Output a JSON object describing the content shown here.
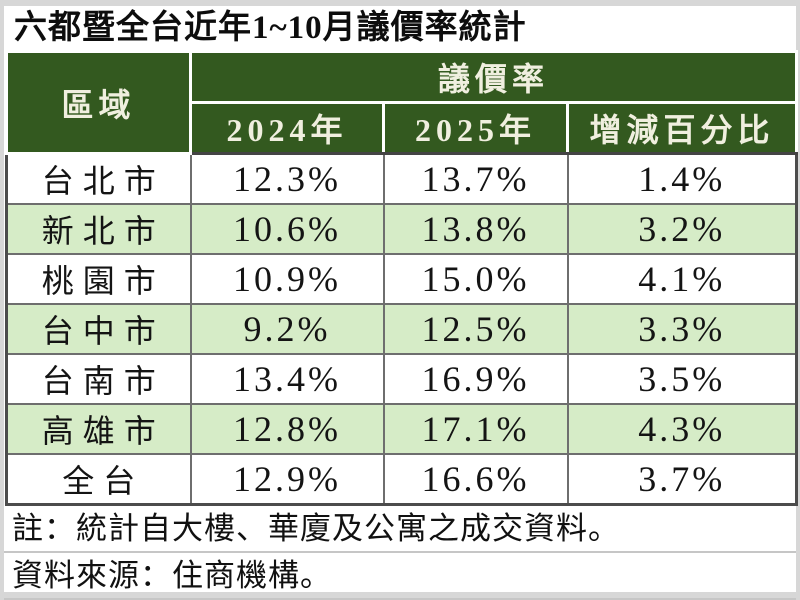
{
  "page": {
    "title": "六都暨全台近年1~10月議價率統計"
  },
  "table": {
    "region_header": "區域",
    "group_header": "議價率",
    "columns": [
      "2024年",
      "2025年",
      "增減百分比"
    ],
    "rows": [
      {
        "region": "台北市",
        "y2024": "12.3%",
        "y2025": "13.7%",
        "change": "1.4%"
      },
      {
        "region": "新北市",
        "y2024": "10.6%",
        "y2025": "13.8%",
        "change": "3.2%"
      },
      {
        "region": "桃園市",
        "y2024": "10.9%",
        "y2025": "15.0%",
        "change": "4.1%"
      },
      {
        "region": "台中市",
        "y2024": "9.2%",
        "y2025": "12.5%",
        "change": "3.3%"
      },
      {
        "region": "台南市",
        "y2024": "13.4%",
        "y2025": "16.9%",
        "change": "3.5%"
      },
      {
        "region": "高雄市",
        "y2024": "12.8%",
        "y2025": "17.1%",
        "change": "4.3%"
      },
      {
        "region": "全台",
        "y2024": "12.9%",
        "y2025": "16.6%",
        "change": "3.7%"
      }
    ]
  },
  "footnotes": {
    "note": "註：統計自大樓、華廈及公寓之成交資料。",
    "source": "資料來源：住商機構。"
  },
  "colors": {
    "header_green": "#33591f",
    "header_text": "#f0efdf",
    "row_green": "#d6ecc7",
    "grid_line": "#6e6e6e"
  },
  "chart_data": {
    "type": "table",
    "title": "六都暨全台近年1~10月議價率統計",
    "categories": [
      "台北市",
      "新北市",
      "桃園市",
      "台中市",
      "台南市",
      "高雄市",
      "全台"
    ],
    "series": [
      {
        "name": "2024年",
        "values": [
          12.3,
          10.6,
          10.9,
          9.2,
          13.4,
          12.8,
          12.9
        ]
      },
      {
        "name": "2025年",
        "values": [
          13.7,
          13.8,
          15.0,
          12.5,
          16.9,
          17.1,
          16.6
        ]
      },
      {
        "name": "增減百分比",
        "values": [
          1.4,
          3.2,
          4.1,
          3.3,
          3.5,
          4.3,
          3.7
        ]
      }
    ],
    "unit": "%",
    "notes": [
      "註：統計自大樓、華廈及公寓之成交資料。",
      "資料來源：住商機構。"
    ]
  }
}
